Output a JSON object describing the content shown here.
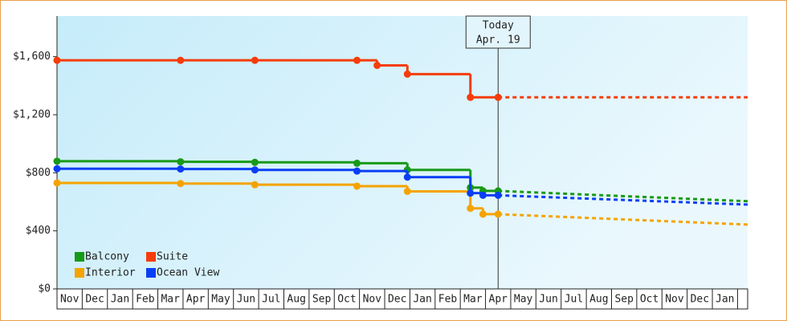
{
  "chart_data": {
    "type": "step-line",
    "categories": [
      "Nov",
      "Dec",
      "Jan",
      "Feb",
      "Mar",
      "Apr",
      "May",
      "Jun",
      "Jul",
      "Aug",
      "Sep",
      "Oct",
      "Nov",
      "Dec",
      "Jan",
      "Feb",
      "Mar",
      "Apr",
      "May",
      "Jun",
      "Jul",
      "Aug",
      "Sep",
      "Oct",
      "Nov",
      "Dec",
      "Jan"
    ],
    "xlim": [
      0,
      27.4
    ],
    "ylim": [
      0,
      1880
    ],
    "yticks": [
      {
        "value": 0,
        "label": "$0"
      },
      {
        "value": 400,
        "label": "$400"
      },
      {
        "value": 800,
        "label": "$800"
      },
      {
        "value": 1200,
        "label": "$1,200"
      },
      {
        "value": 1600,
        "label": "$1,600"
      }
    ],
    "annotation": {
      "lines": [
        "Today",
        "Apr. 19"
      ],
      "x": 17.5
    },
    "legend": "lower-left",
    "series": [
      {
        "name": "Balcony",
        "color": "#189a18",
        "x": [
          0,
          4.9,
          7.85,
          11.9,
          13.9,
          16.4,
          16.9,
          17.5
        ],
        "values": [
          880,
          876,
          872,
          866,
          820,
          698,
          675,
          675
        ],
        "forecast": {
          "x": [
            17.5,
            27.4
          ],
          "values": [
            675,
            604
          ]
        }
      },
      {
        "name": "Suite",
        "color": "#f53c0a",
        "x": [
          0,
          4.9,
          7.85,
          11.9,
          12.7,
          13.9,
          16.4,
          17.5
        ],
        "values": [
          1575,
          1575,
          1575,
          1575,
          1540,
          1480,
          1320,
          1320
        ],
        "forecast": {
          "x": [
            17.5,
            27.4
          ],
          "values": [
            1320,
            1320
          ]
        }
      },
      {
        "name": "Interior",
        "color": "#f5a300",
        "x": [
          0,
          4.9,
          7.85,
          11.9,
          13.9,
          16.4,
          16.9,
          17.5
        ],
        "values": [
          730,
          726,
          718,
          708,
          672,
          555,
          515,
          515
        ],
        "forecast": {
          "x": [
            17.5,
            27.4
          ],
          "values": [
            515,
            443
          ]
        }
      },
      {
        "name": "Ocean View",
        "color": "#0a3ef5",
        "x": [
          0,
          4.9,
          7.85,
          11.9,
          13.9,
          16.4,
          16.9,
          17.5
        ],
        "values": [
          828,
          826,
          820,
          812,
          770,
          660,
          645,
          645
        ],
        "forecast": {
          "x": [
            17.5,
            27.4
          ],
          "values": [
            645,
            581
          ]
        }
      }
    ]
  }
}
